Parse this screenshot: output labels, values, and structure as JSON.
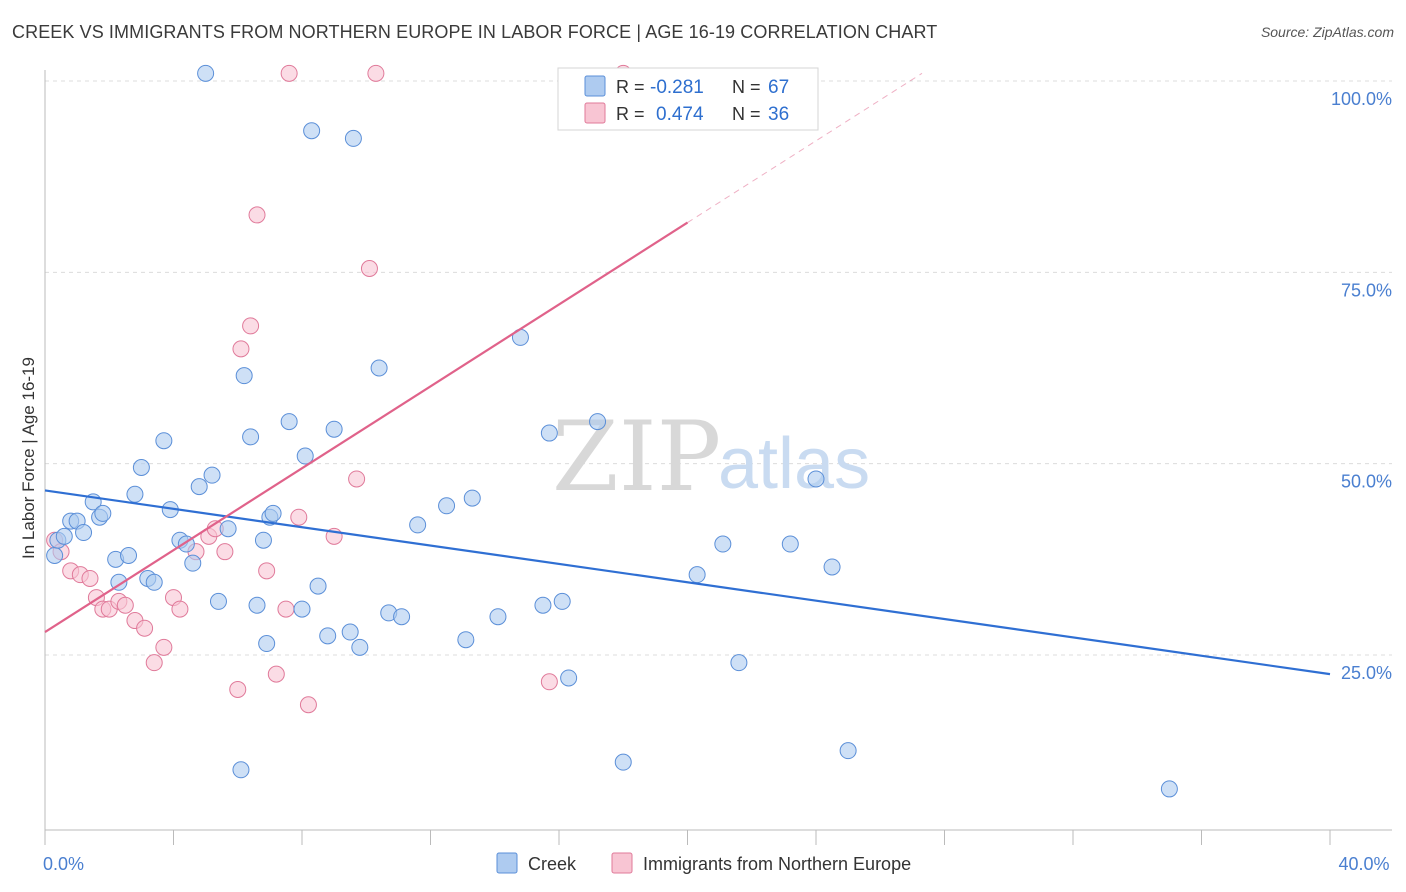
{
  "header": {
    "title": "CREEK VS IMMIGRANTS FROM NORTHERN EUROPE IN LABOR FORCE | AGE 16-19 CORRELATION CHART",
    "source": "Source: ZipAtlas.com"
  },
  "watermark": {
    "zip": "ZIP",
    "atlas": "atlas"
  },
  "legend": {
    "rows": [
      {
        "r_label": "R =",
        "r_value": "-0.281",
        "n_label": "N =",
        "n_value": "67"
      },
      {
        "r_label": "R =",
        "r_value": "0.474",
        "n_label": "N =",
        "n_value": "36"
      }
    ]
  },
  "colors": {
    "creek_fill": "#aecbf0",
    "creek_stroke": "#5b8fd8",
    "creek_line": "#2f6fd3",
    "imm_fill": "#f8c5d3",
    "imm_stroke": "#e07a9a",
    "imm_line": "#e0628a",
    "tick_label": "#4a7fd0",
    "grid": "#dcdcdc"
  },
  "chart_data": {
    "type": "scatter",
    "title": "CREEK VS IMMIGRANTS FROM NORTHERN EUROPE IN LABOR FORCE | AGE 16-19 CORRELATION CHART",
    "xlabel": "",
    "ylabel": "In Labor Force | Age 16-19",
    "xlim": [
      0,
      40
    ],
    "ylim": [
      0,
      103
    ],
    "x_tick_labels": [
      {
        "value": 0,
        "label": "0.0%"
      },
      {
        "value": 40,
        "label": "40.0%"
      }
    ],
    "y_tick_labels": [
      {
        "value": 100,
        "label": "100.0%"
      },
      {
        "value": 75,
        "label": "75.0%"
      },
      {
        "value": 50,
        "label": "50.0%"
      },
      {
        "value": 25,
        "label": "25.0%"
      }
    ],
    "series": [
      {
        "name": "Creek",
        "points": [
          [
            0.3,
            38
          ],
          [
            0.4,
            40
          ],
          [
            0.6,
            40.5
          ],
          [
            0.8,
            42.5
          ],
          [
            1.0,
            42.5
          ],
          [
            1.2,
            41
          ],
          [
            1.5,
            45
          ],
          [
            1.7,
            43
          ],
          [
            1.8,
            43.5
          ],
          [
            2.2,
            37.5
          ],
          [
            2.3,
            34.5
          ],
          [
            2.6,
            38
          ],
          [
            2.8,
            46
          ],
          [
            3.0,
            49.5
          ],
          [
            3.2,
            35
          ],
          [
            3.4,
            34.5
          ],
          [
            3.7,
            53
          ],
          [
            3.9,
            44
          ],
          [
            4.2,
            40
          ],
          [
            4.4,
            39.5
          ],
          [
            4.6,
            37
          ],
          [
            4.8,
            47
          ],
          [
            5.2,
            48.5
          ],
          [
            5.4,
            32
          ],
          [
            5.7,
            41.5
          ],
          [
            6.1,
            10
          ],
          [
            6.2,
            61.5
          ],
          [
            6.4,
            53.5
          ],
          [
            6.6,
            31.5
          ],
          [
            6.8,
            40
          ],
          [
            6.9,
            26.5
          ],
          [
            7.0,
            43
          ],
          [
            7.1,
            43.5
          ],
          [
            7.6,
            55.5
          ],
          [
            8.0,
            31
          ],
          [
            8.1,
            51
          ],
          [
            8.5,
            34
          ],
          [
            8.8,
            27.5
          ],
          [
            9.0,
            54.5
          ],
          [
            9.5,
            28
          ],
          [
            9.8,
            26
          ],
          [
            10.4,
            62.5
          ],
          [
            10.7,
            30.5
          ],
          [
            11.1,
            30
          ],
          [
            11.6,
            42
          ],
          [
            12.5,
            44.5
          ],
          [
            13.1,
            27
          ],
          [
            13.3,
            45.5
          ],
          [
            14.1,
            30
          ],
          [
            14.8,
            66.5
          ],
          [
            15.5,
            31.5
          ],
          [
            15.7,
            54
          ],
          [
            16.1,
            32
          ],
          [
            16.3,
            22
          ],
          [
            17.2,
            55.5
          ],
          [
            18.0,
            11
          ],
          [
            20.3,
            35.5
          ],
          [
            21.1,
            39.5
          ],
          [
            21.6,
            24
          ],
          [
            23.2,
            39.5
          ],
          [
            24.0,
            48
          ],
          [
            24.5,
            36.5
          ],
          [
            25.0,
            12.5
          ],
          [
            35.0,
            7.5
          ],
          [
            5.0,
            101
          ],
          [
            8.3,
            93.5
          ],
          [
            9.6,
            92.5
          ]
        ]
      },
      {
        "name": "Immigrants from Northern Europe",
        "points": [
          [
            0.3,
            40
          ],
          [
            0.5,
            38.5
          ],
          [
            0.8,
            36
          ],
          [
            1.1,
            35.5
          ],
          [
            1.4,
            35
          ],
          [
            1.6,
            32.5
          ],
          [
            1.8,
            31
          ],
          [
            2.0,
            31
          ],
          [
            2.3,
            32
          ],
          [
            2.5,
            31.5
          ],
          [
            2.8,
            29.5
          ],
          [
            3.1,
            28.5
          ],
          [
            3.4,
            24
          ],
          [
            3.7,
            26
          ],
          [
            4.0,
            32.5
          ],
          [
            4.2,
            31
          ],
          [
            4.7,
            38.5
          ],
          [
            5.1,
            40.5
          ],
          [
            5.3,
            41.5
          ],
          [
            5.6,
            38.5
          ],
          [
            6.0,
            20.5
          ],
          [
            6.1,
            65
          ],
          [
            6.4,
            68
          ],
          [
            6.6,
            82.5
          ],
          [
            6.9,
            36
          ],
          [
            7.2,
            22.5
          ],
          [
            7.5,
            31
          ],
          [
            7.9,
            43
          ],
          [
            8.2,
            18.5
          ],
          [
            9.0,
            40.5
          ],
          [
            9.7,
            48
          ],
          [
            10.1,
            75.5
          ],
          [
            15.7,
            21.5
          ],
          [
            7.6,
            101
          ],
          [
            10.3,
            101
          ],
          [
            18.0,
            101
          ]
        ]
      }
    ],
    "trend_lines": [
      {
        "name": "Creek",
        "from": [
          0,
          46.5
        ],
        "to": [
          40,
          22.5
        ],
        "r": -0.281,
        "n": 67
      },
      {
        "name": "Immigrants from Northern Europe",
        "from": [
          0,
          28
        ],
        "to": [
          20,
          81.5
        ],
        "dashed_to": [
          27.3,
          101
        ],
        "r": 0.474,
        "n": 36
      }
    ],
    "legend_entries": [
      "Creek",
      "Immigrants from Northern Europe"
    ],
    "grid": true
  }
}
